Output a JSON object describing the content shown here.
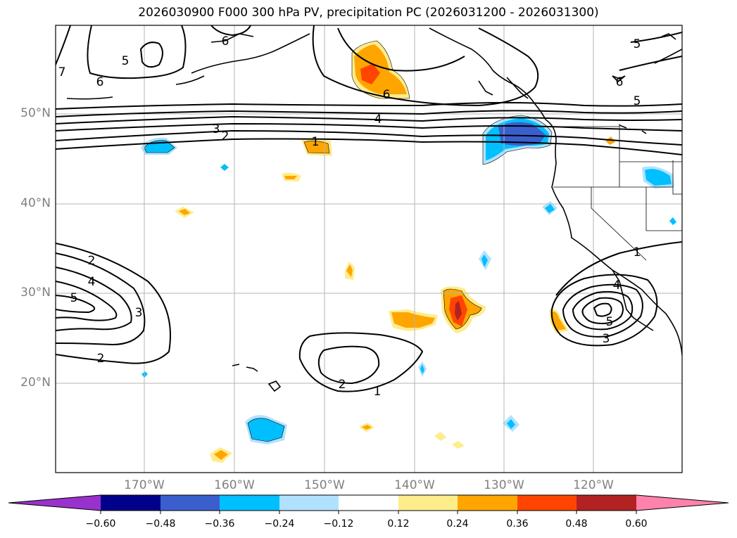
{
  "title": "2026030900 F000 300 hPa PV, precipitation PC (2026031200 - 2026031300)",
  "map": {
    "lat_labels": [
      "50°N",
      "40°N",
      "30°N",
      "20°N"
    ],
    "lon_labels": [
      "170°W",
      "160°W",
      "150°W",
      "140°W",
      "130°W",
      "120°W"
    ],
    "pv_contour_labels": [
      "7",
      "5",
      "6",
      "6",
      "6",
      "5",
      "6",
      "5",
      "4",
      "3",
      "2",
      "1",
      "2",
      "4",
      "5",
      "3",
      "2",
      "1",
      "1",
      "2",
      "4",
      "5",
      "3"
    ]
  },
  "colorbar": {
    "tick_labels": [
      "−0.60",
      "−0.48",
      "−0.36",
      "−0.24",
      "−0.12",
      "0.12",
      "0.24",
      "0.36",
      "0.48",
      "0.60"
    ],
    "colors": [
      "#9932cc",
      "#00008b",
      "#3a5fcd",
      "#00bfff",
      "#b0e2ff",
      "#ffffff",
      "#ffec8b",
      "#ffa500",
      "#ff4500",
      "#b22222",
      "#ff82ab"
    ]
  }
}
